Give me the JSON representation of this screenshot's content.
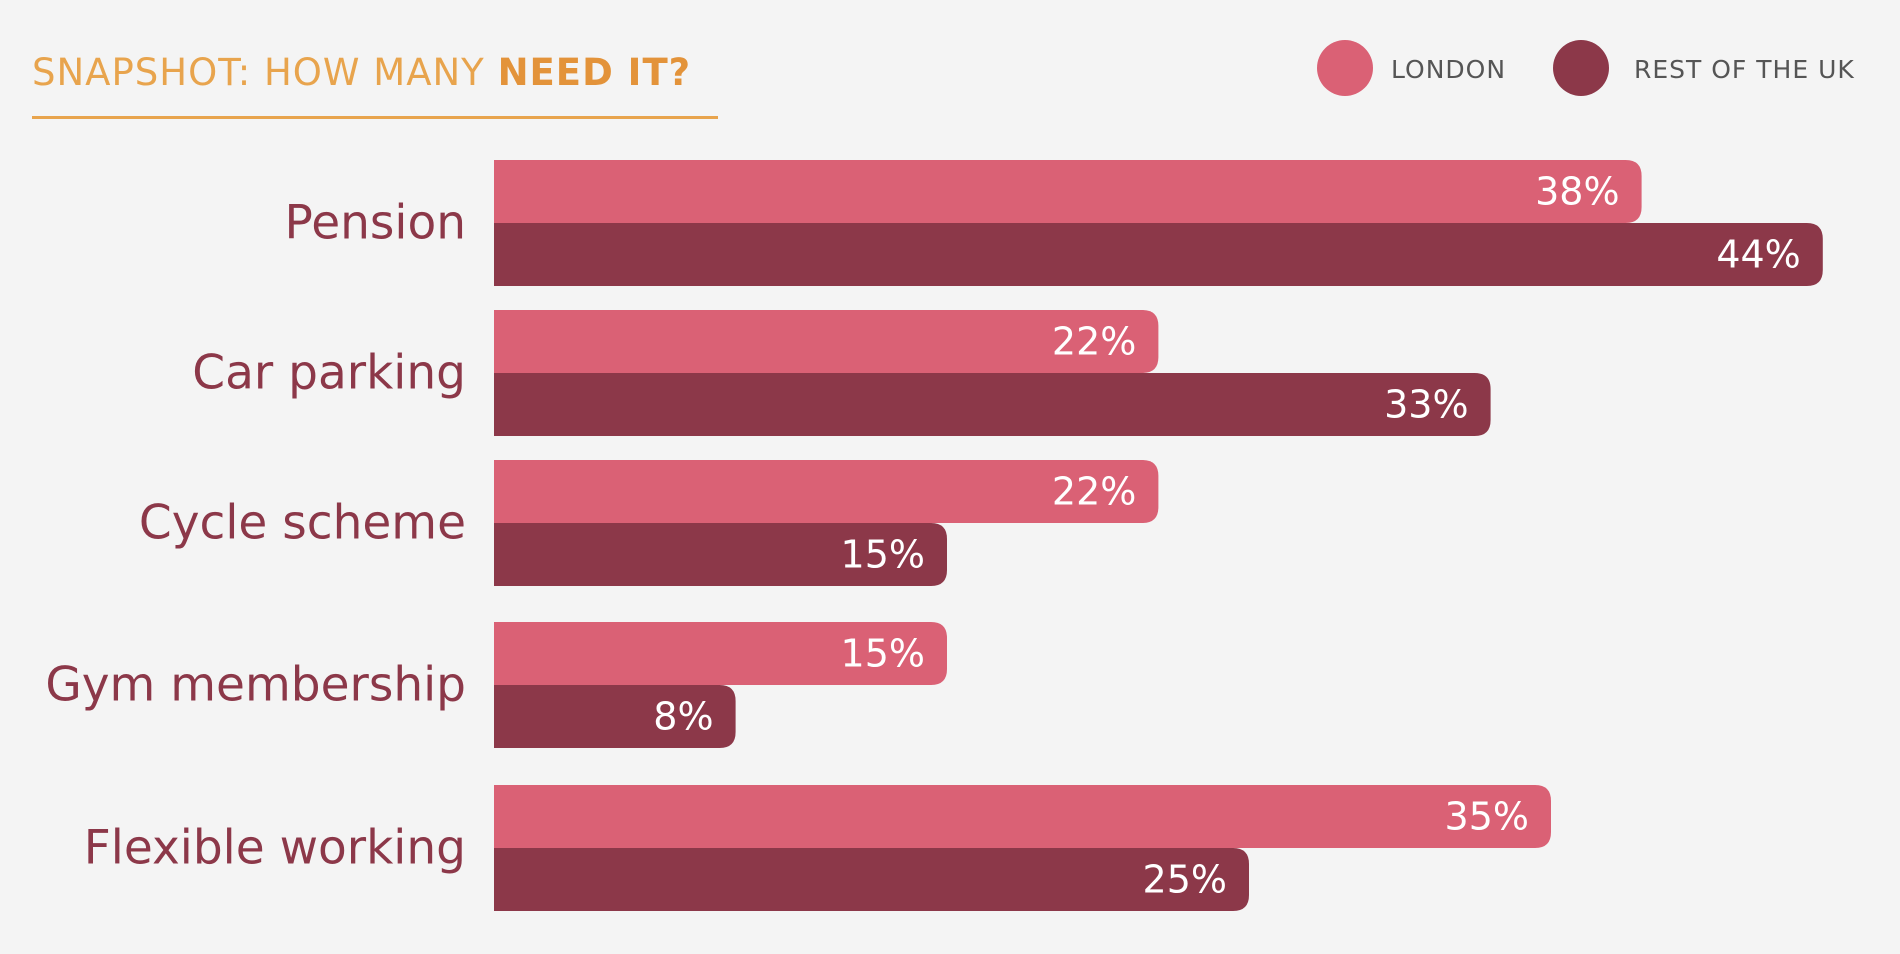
{
  "title": {
    "prefix": "SNAPSHOT: HOW MANY ",
    "emphasis": "NEED IT?",
    "color": "#e8a44d"
  },
  "legend": [
    {
      "label": "LONDON",
      "color": "#da6175"
    },
    {
      "label": "REST OF THE UK",
      "color": "#8c3849"
    }
  ],
  "chart_data": {
    "type": "bar",
    "orientation": "horizontal",
    "title": "SNAPSHOT: HOW MANY NEED IT?",
    "categories": [
      "Pension",
      "Car parking",
      "Cycle scheme",
      "Gym membership",
      "Flexible working"
    ],
    "series": [
      {
        "name": "LONDON",
        "values": [
          38,
          22,
          22,
          15,
          35
        ],
        "labels": [
          "38%",
          "22%",
          "22%",
          "15%",
          "35%"
        ],
        "color": "#da6175"
      },
      {
        "name": "REST OF THE UK",
        "values": [
          44,
          33,
          15,
          8,
          25
        ],
        "labels": [
          "44%",
          "33%",
          "15%",
          "8%",
          "25%"
        ],
        "color": "#8c3849"
      }
    ],
    "category_label_color": "#8c3849",
    "xlim": [
      0,
      44
    ],
    "grid": false,
    "legend_position": "top-right"
  }
}
